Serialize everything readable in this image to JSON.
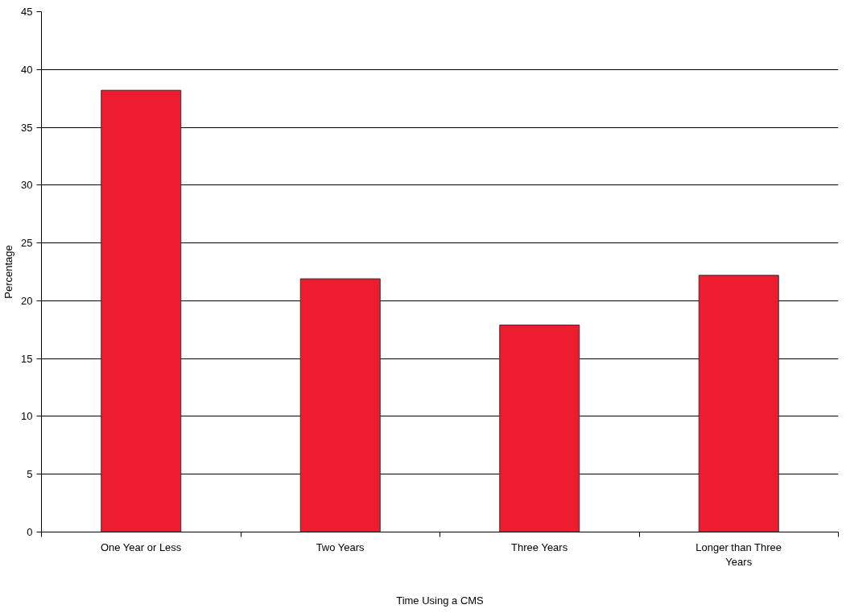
{
  "chart_data": {
    "type": "bar",
    "categories": [
      "One Year or Less",
      "Two Years",
      "Three Years",
      "Longer than Three Years"
    ],
    "values": [
      38.2,
      21.9,
      17.9,
      22.2
    ],
    "color": "#ed1c2e",
    "xlabel": "Time Using a CMS",
    "ylabel": "Percentage",
    "ylim": [
      0,
      45
    ],
    "yticks": [
      0,
      5,
      10,
      15,
      20,
      25,
      30,
      35,
      40,
      45
    ],
    "grid": "y"
  }
}
